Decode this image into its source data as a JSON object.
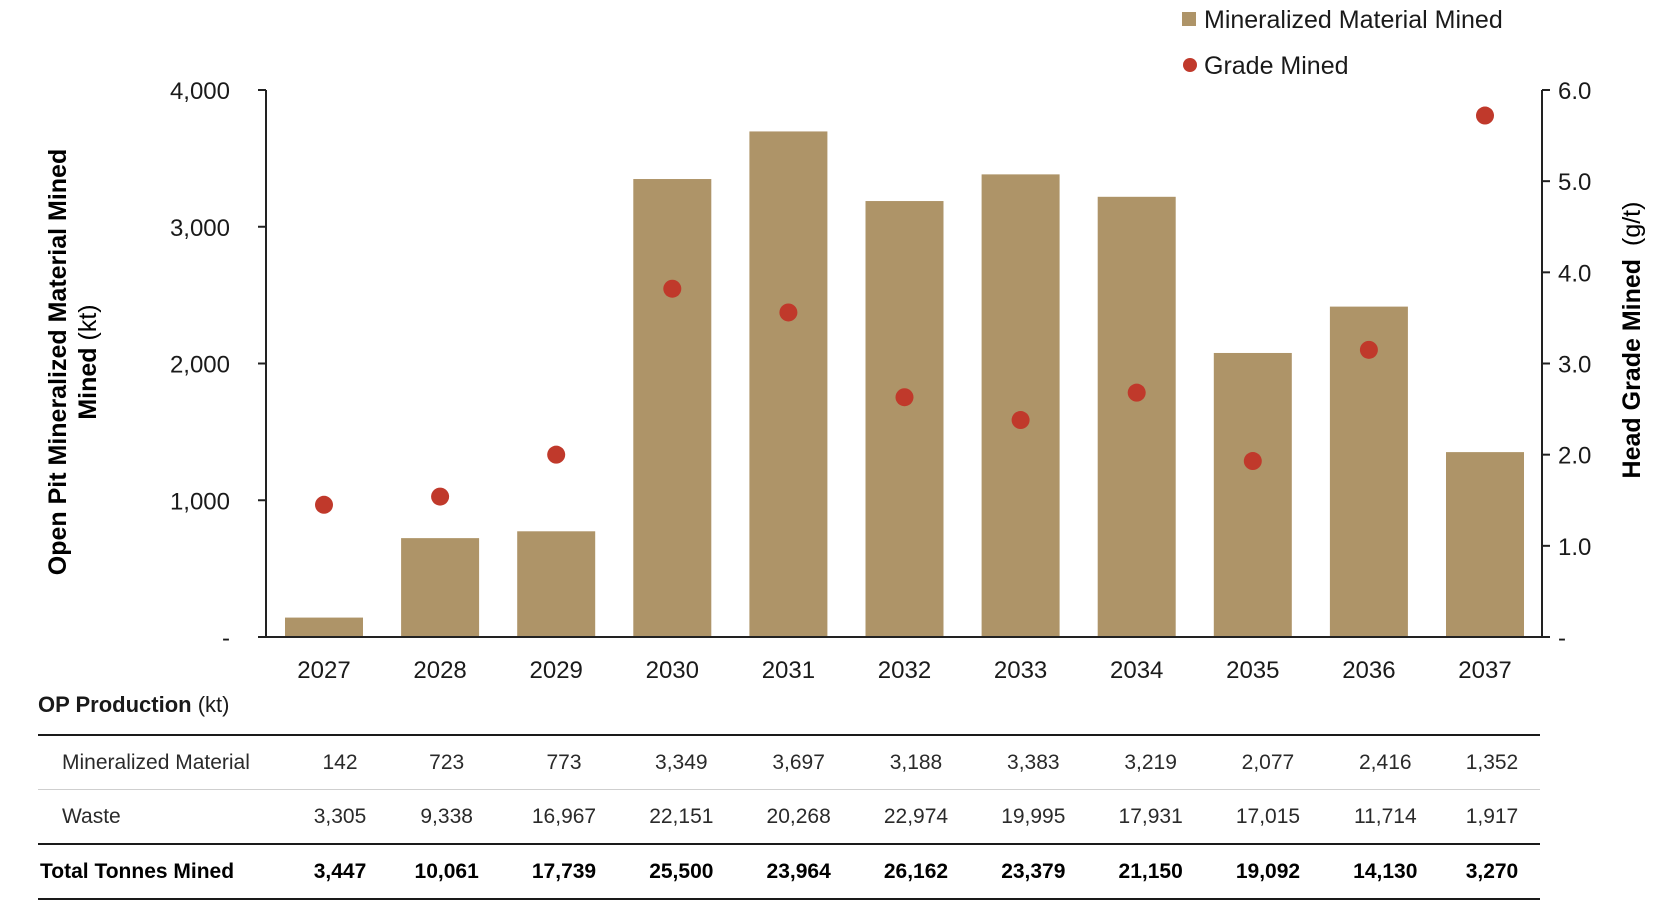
{
  "chart_data": {
    "type": "bar",
    "categories": [
      "2027",
      "2028",
      "2029",
      "2030",
      "2031",
      "2032",
      "2033",
      "2034",
      "2035",
      "2036",
      "2037"
    ],
    "series": [
      {
        "name": "Mineralized Material Mined",
        "type": "bar",
        "axis": "left",
        "color": "#ae9468",
        "values": [
          142,
          723,
          773,
          3349,
          3697,
          3188,
          3383,
          3219,
          2077,
          2416,
          1352
        ]
      },
      {
        "name": "Grade Mined",
        "type": "scatter",
        "axis": "right",
        "color": "#c0392b",
        "values": [
          1.45,
          1.54,
          2.0,
          3.82,
          3.56,
          2.63,
          2.38,
          2.68,
          1.93,
          3.15,
          5.72
        ]
      }
    ],
    "left_axis": {
      "title_bold": "Open Pit Mineralized Material Mined",
      "title_unit": "(kt)",
      "ylim": [
        0,
        4000
      ],
      "ticks": [
        {
          "v": 0,
          "label": "-"
        },
        {
          "v": 1000,
          "label": "1,000"
        },
        {
          "v": 2000,
          "label": "2,000"
        },
        {
          "v": 3000,
          "label": "3,000"
        },
        {
          "v": 4000,
          "label": "4,000"
        }
      ]
    },
    "right_axis": {
      "title_bold": "Head Grade Mined",
      "title_unit": "(g/t)",
      "ylim": [
        0,
        6
      ],
      "ticks": [
        {
          "v": 0,
          "label": "-"
        },
        {
          "v": 1,
          "label": "1.0"
        },
        {
          "v": 2,
          "label": "2.0"
        },
        {
          "v": 3,
          "label": "3.0"
        },
        {
          "v": 4,
          "label": "4.0"
        },
        {
          "v": 5,
          "label": "5.0"
        },
        {
          "v": 6,
          "label": "6.0"
        }
      ]
    },
    "legend": {
      "position": "top-right",
      "entries": [
        "Mineralized Material Mined",
        "Grade Mined"
      ]
    },
    "grid": false
  },
  "table": {
    "title": "OP Production",
    "unit": "(kt)",
    "rows": [
      {
        "label": "Mineralized Material",
        "values": [
          "142",
          "723",
          "773",
          "3,349",
          "3,697",
          "3,188",
          "3,383",
          "3,219",
          "2,077",
          "2,416",
          "1,352"
        ]
      },
      {
        "label": "Waste",
        "values": [
          "3,305",
          "9,338",
          "16,967",
          "22,151",
          "20,268",
          "22,974",
          "19,995",
          "17,931",
          "17,015",
          "11,714",
          "1,917"
        ]
      },
      {
        "label": "Total Tonnes Mined",
        "values": [
          "3,447",
          "10,061",
          "17,739",
          "25,500",
          "23,964",
          "26,162",
          "23,379",
          "21,150",
          "19,092",
          "14,130",
          "3,270"
        ]
      }
    ]
  }
}
